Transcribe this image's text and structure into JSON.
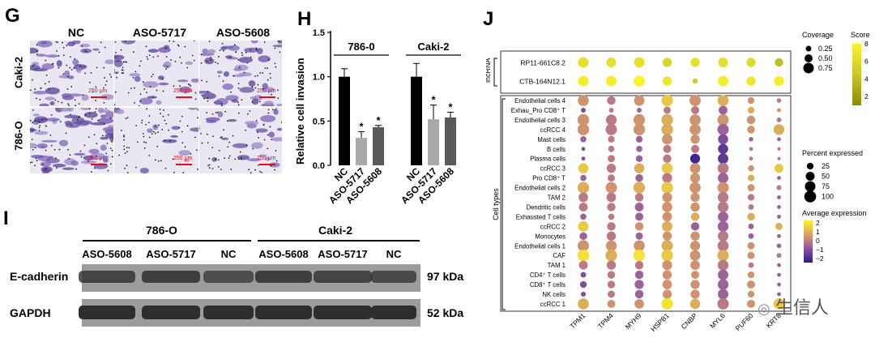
{
  "panels": {
    "g": "G",
    "h": "H",
    "i": "I",
    "j": "J"
  },
  "panel_g": {
    "columns": [
      "NC",
      "ASO-5717",
      "ASO-5608"
    ],
    "rows": [
      "Caki-2",
      "786-O"
    ],
    "scale_label": "250 μm"
  },
  "panel_i": {
    "group_labels": [
      "786-O",
      "Caki-2"
    ],
    "lanes": [
      "ASO-5608",
      "ASO-5717",
      "NC",
      "ASO-5608",
      "ASO-5717",
      "NC"
    ],
    "bands": [
      "E-cadherin",
      "GAPDH"
    ],
    "sizes": [
      "97 kDa",
      "52 kDa"
    ],
    "colors": {
      "blot_bg": "#9c9c9c",
      "band": "#2e2e2e"
    }
  },
  "watermark": "生信人",
  "chart_data": [
    {
      "type": "bar",
      "ylabel": "Relative cell invasion",
      "ylim": [
        0,
        1.5
      ],
      "yticks": [
        "0.0",
        "0.5",
        "1.0",
        "1.5"
      ],
      "groups": [
        {
          "name": "786-0",
          "categories": [
            "NC",
            "ASO-5717",
            "ASO-5608"
          ],
          "values": [
            1.0,
            0.31,
            0.43
          ],
          "errors": [
            0.09,
            0.07,
            0.02
          ],
          "significance": [
            "",
            "*",
            "*"
          ]
        },
        {
          "name": "Caki-2",
          "categories": [
            "NC",
            "ASO-5717",
            "ASO-5608"
          ],
          "values": [
            1.0,
            0.52,
            0.54
          ],
          "errors": [
            0.15,
            0.16,
            0.06
          ],
          "significance": [
            "",
            "*",
            "*"
          ]
        }
      ],
      "colors": {
        "NC": "#000000",
        "ASO-5717": "#a9a9a9",
        "ASO-5608": "#595959"
      }
    },
    {
      "type": "scatter",
      "subtype": "dotplot",
      "x": [
        "TPM1",
        "TPM4",
        "MYH9",
        "HSPB1",
        "CNBP",
        "MYL6",
        "PUF60",
        "KRT8"
      ],
      "lncrna": {
        "label": "lncRNA",
        "rows": [
          "RP11-661C8.2",
          "CTB-164N12.1"
        ],
        "coverage": [
          [
            0.55,
            0.5,
            0.55,
            0.45,
            0.45,
            0.5,
            0.45,
            0.4
          ],
          [
            0.55,
            0.55,
            0.6,
            0.45,
            0.15,
            0.55,
            0.45,
            0.5
          ]
        ],
        "score": [
          [
            6.5,
            6.5,
            6.5,
            5.5,
            6.5,
            6.5,
            6.0,
            4.0
          ],
          [
            7.5,
            7.5,
            8.0,
            7.0,
            5.0,
            7.5,
            7.0,
            7.5
          ]
        ],
        "legend": {
          "coverage_title": "Coverage",
          "coverage_levels": [
            "0.25",
            "0.50",
            "0.75"
          ],
          "score_title": "Score",
          "score_ticks": [
            "2",
            "4",
            "6",
            "8"
          ]
        }
      },
      "cells": {
        "label": "Cell types",
        "rows": [
          "Endothelial cells 4",
          "Exhau_Pro CD8⁺ T",
          "Endothelial cells 3",
          "ccRCC 4",
          "Mast cells",
          "B cells",
          "Plasma cells",
          "ccRCC 3",
          "Pro CD8⁺ T",
          "Endothelial cells 2",
          "TAM 2",
          "Dendritic cells",
          "Exhausted T cells",
          "ccRCC 2",
          "Monocytes",
          "Endothelial cells 1",
          "CAF",
          "TAM 1",
          "CD4⁺ T cells",
          "CD8⁺ T cells",
          "NK cells",
          "ccRCC 1"
        ],
        "percent": [
          [
            85,
            45,
            75,
            95,
            90,
            85,
            25,
            8
          ],
          [
            10,
            10,
            10,
            30,
            40,
            50,
            25,
            5
          ],
          [
            95,
            80,
            95,
            95,
            85,
            90,
            45,
            10
          ],
          [
            95,
            90,
            95,
            95,
            85,
            90,
            35,
            80
          ],
          [
            20,
            25,
            25,
            75,
            55,
            70,
            8,
            5
          ],
          [
            5,
            20,
            20,
            40,
            40,
            70,
            5,
            3
          ],
          [
            5,
            30,
            25,
            45,
            65,
            75,
            5,
            3
          ],
          [
            70,
            55,
            70,
            85,
            75,
            85,
            20,
            50
          ],
          [
            20,
            30,
            35,
            65,
            65,
            75,
            25,
            5
          ],
          [
            95,
            90,
            95,
            95,
            85,
            90,
            30,
            10
          ],
          [
            60,
            60,
            45,
            65,
            55,
            80,
            25,
            5
          ],
          [
            50,
            45,
            50,
            70,
            55,
            80,
            15,
            5
          ],
          [
            20,
            20,
            40,
            60,
            45,
            75,
            35,
            5
          ],
          [
            75,
            45,
            45,
            75,
            45,
            80,
            15,
            30
          ],
          [
            35,
            55,
            30,
            55,
            55,
            75,
            15,
            5
          ],
          [
            90,
            80,
            85,
            90,
            65,
            85,
            30,
            8
          ],
          [
            98,
            95,
            95,
            95,
            75,
            90,
            30,
            10
          ],
          [
            50,
            55,
            45,
            65,
            60,
            80,
            15,
            5
          ],
          [
            15,
            35,
            45,
            55,
            40,
            75,
            25,
            5
          ],
          [
            25,
            35,
            55,
            60,
            55,
            80,
            40,
            5
          ],
          [
            10,
            30,
            45,
            55,
            55,
            75,
            25,
            5
          ],
          [
            85,
            40,
            60,
            95,
            70,
            90,
            40,
            85
          ]
        ],
        "expression": [
          [
            0.5,
            0.0,
            0.5,
            1.5,
            0.5,
            1.0,
            0.5,
            0.0
          ],
          [
            -1.0,
            0.0,
            -0.5,
            0.0,
            0.0,
            -0.5,
            1.0,
            0.5
          ],
          [
            0.5,
            0.0,
            0.5,
            1.0,
            0.5,
            0.5,
            0.5,
            0.0
          ],
          [
            0.5,
            0.0,
            0.5,
            1.0,
            0.5,
            -0.5,
            0.5,
            1.0
          ],
          [
            -0.5,
            0.0,
            -0.5,
            0.5,
            0.5,
            -1.0,
            -0.5,
            -0.5
          ],
          [
            -1.0,
            0.0,
            -0.5,
            0.0,
            0.0,
            -1.5,
            0.0,
            0.0
          ],
          [
            -1.0,
            0.0,
            -0.5,
            0.0,
            -2.0,
            -1.5,
            0.0,
            0.0
          ],
          [
            1.5,
            0.0,
            1.0,
            1.5,
            0.5,
            0.0,
            0.5,
            1.5
          ],
          [
            -0.5,
            0.0,
            -0.5,
            0.0,
            0.5,
            -0.5,
            1.0,
            -0.5
          ],
          [
            1.0,
            0.5,
            1.0,
            1.5,
            0.5,
            0.5,
            0.5,
            0.0
          ],
          [
            0.0,
            0.0,
            0.0,
            0.5,
            0.5,
            0.0,
            0.0,
            -0.5
          ],
          [
            0.0,
            0.0,
            -0.5,
            0.5,
            0.5,
            0.0,
            0.0,
            -0.5
          ],
          [
            -0.5,
            0.0,
            -0.5,
            0.5,
            1.0,
            -0.5,
            1.0,
            -0.5
          ],
          [
            1.5,
            0.0,
            0.5,
            1.0,
            -0.5,
            -0.5,
            -0.5,
            1.0
          ],
          [
            -0.5,
            0.0,
            -0.5,
            0.5,
            0.5,
            0.0,
            -0.5,
            -0.5
          ],
          [
            0.5,
            0.5,
            0.5,
            1.0,
            0.5,
            0.0,
            0.5,
            -0.5
          ],
          [
            2.0,
            1.0,
            2.0,
            1.5,
            0.5,
            1.0,
            0.5,
            0.0
          ],
          [
            0.0,
            0.0,
            0.0,
            0.5,
            0.5,
            0.0,
            0.0,
            -0.5
          ],
          [
            -1.0,
            0.0,
            -0.5,
            0.5,
            0.5,
            -0.5,
            0.5,
            -0.5
          ],
          [
            -1.0,
            0.0,
            -0.5,
            0.5,
            0.5,
            -0.5,
            0.5,
            -0.5
          ],
          [
            -1.0,
            0.0,
            -0.5,
            0.5,
            0.5,
            -0.5,
            0.5,
            -0.5
          ],
          [
            1.0,
            0.5,
            0.5,
            2.0,
            1.0,
            0.0,
            0.5,
            1.5
          ]
        ],
        "legend": {
          "percent_title": "Percent expressed",
          "percent_levels": [
            "25",
            "50",
            "75",
            "100"
          ],
          "expr_title": "Average expression",
          "expr_ticks": [
            "2",
            "1",
            "0",
            "−1",
            "−2"
          ]
        }
      }
    }
  ]
}
